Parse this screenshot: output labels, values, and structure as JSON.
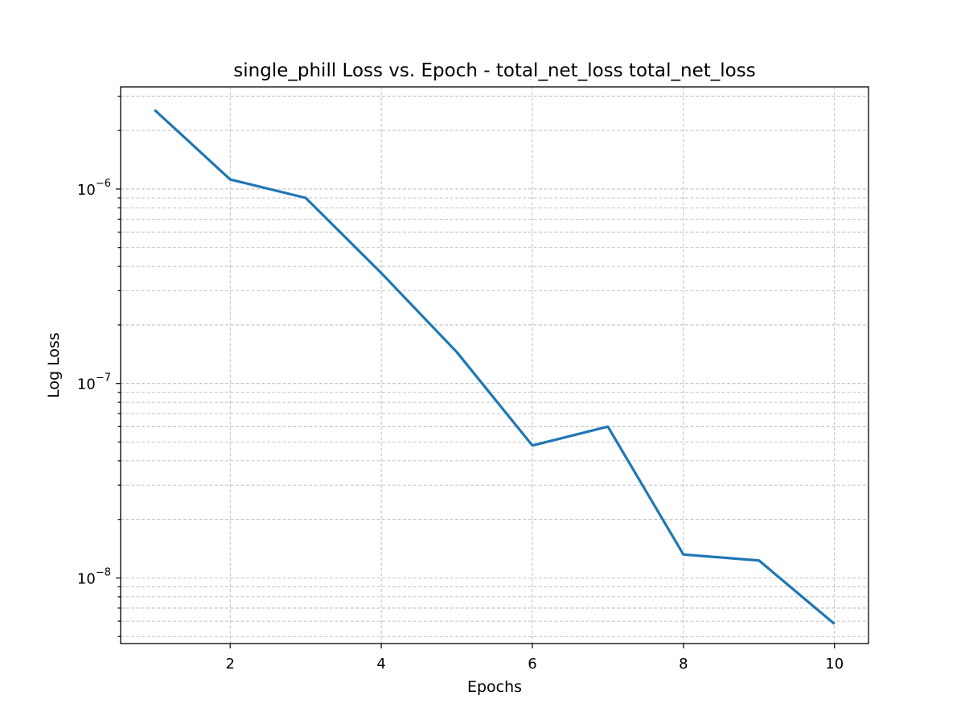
{
  "chart_data": {
    "type": "line",
    "title": "single_phill Loss vs. Epoch - total_net_loss total_net_loss",
    "xlabel": "Epochs",
    "ylabel": "Log Loss",
    "yscale": "log",
    "grid": "both-major-and-minor",
    "xlim": [
      0.55,
      10.45
    ],
    "ylim": [
      4.6e-09,
      3.35e-06
    ],
    "x_ticks": [
      2,
      4,
      6,
      8,
      10
    ],
    "y_ticks": [
      {
        "value": 1e-08,
        "base": "10",
        "exp": "−8"
      },
      {
        "value": 1e-07,
        "base": "10",
        "exp": "−7"
      },
      {
        "value": 1e-06,
        "base": "10",
        "exp": "−6"
      }
    ],
    "series": [
      {
        "color": "#1f77b4",
        "x": [
          1,
          2,
          3,
          4,
          5,
          6,
          7,
          8,
          9,
          10
        ],
        "y": [
          2.55e-06,
          1.12e-06,
          9e-07,
          3.7e-07,
          1.45e-07,
          4.8e-08,
          6e-08,
          1.32e-08,
          1.23e-08,
          5.8e-09
        ]
      }
    ]
  }
}
